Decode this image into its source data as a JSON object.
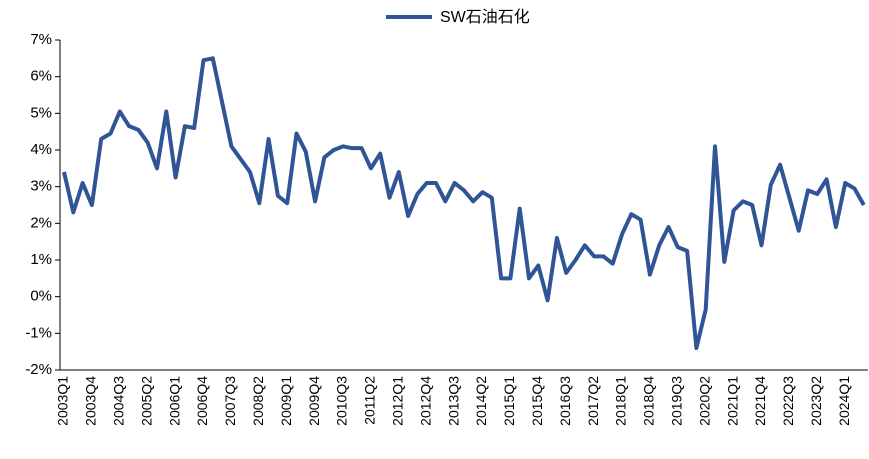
{
  "chart_data": {
    "type": "line",
    "categories": [
      "2003Q1",
      null,
      null,
      "2003Q4",
      null,
      null,
      "2004Q3",
      null,
      null,
      "2005Q2",
      null,
      null,
      "2006Q1",
      null,
      null,
      "2006Q4",
      null,
      null,
      "2007Q3",
      null,
      null,
      "2008Q2",
      null,
      null,
      "2009Q1",
      null,
      null,
      "2009Q4",
      null,
      null,
      "2010Q3",
      null,
      null,
      "2011Q2",
      null,
      null,
      "2012Q1",
      null,
      null,
      "2012Q4",
      null,
      null,
      "2013Q3",
      null,
      null,
      "2014Q2",
      null,
      null,
      "2015Q1",
      null,
      null,
      "2015Q4",
      null,
      null,
      "2016Q3",
      null,
      null,
      "2017Q2",
      null,
      null,
      "2018Q1",
      null,
      null,
      "2018Q4",
      null,
      null,
      "2019Q3",
      null,
      null,
      "2020Q2",
      null,
      null,
      "2021Q1",
      null,
      null,
      "2021Q4",
      null,
      null,
      "2022Q3",
      null,
      null,
      "2023Q2",
      null,
      null,
      "2024Q1",
      null,
      null
    ],
    "series": [
      {
        "name": "SW石油石化",
        "color": "#2f5597",
        "values": [
          3.4,
          2.3,
          3.1,
          2.5,
          4.3,
          4.45,
          5.05,
          4.65,
          4.55,
          4.2,
          3.5,
          5.05,
          3.25,
          4.65,
          4.6,
          6.45,
          6.5,
          5.3,
          4.1,
          3.75,
          3.4,
          2.55,
          4.3,
          2.75,
          2.55,
          4.45,
          3.95,
          2.6,
          3.8,
          4.0,
          4.1,
          4.05,
          4.05,
          3.5,
          3.9,
          2.7,
          3.4,
          2.2,
          2.8,
          3.1,
          3.1,
          2.6,
          3.1,
          2.9,
          2.6,
          2.85,
          2.7,
          0.5,
          0.5,
          2.4,
          0.5,
          0.85,
          -0.1,
          1.6,
          0.65,
          1.0,
          1.4,
          1.1,
          1.1,
          0.9,
          1.7,
          2.25,
          2.1,
          0.6,
          1.4,
          1.9,
          1.35,
          1.25,
          -1.4,
          -0.35,
          4.1,
          0.95,
          2.35,
          2.6,
          2.5,
          1.4,
          3.05,
          3.6,
          2.7,
          1.8,
          2.9,
          2.8,
          3.2,
          1.9,
          3.1,
          2.95,
          2.5
        ]
      }
    ],
    "ylim": [
      -2,
      7
    ],
    "yticks": [
      {
        "value": -2,
        "label": "-2%"
      },
      {
        "value": -1,
        "label": "-1%"
      },
      {
        "value": 0,
        "label": "0%"
      },
      {
        "value": 1,
        "label": "1%"
      },
      {
        "value": 2,
        "label": "2%"
      },
      {
        "value": 3,
        "label": "3%"
      },
      {
        "value": 4,
        "label": "4%"
      },
      {
        "value": 5,
        "label": "5%"
      },
      {
        "value": 6,
        "label": "6%"
      },
      {
        "value": 7,
        "label": "7%"
      }
    ],
    "grid": false,
    "legend": "top"
  }
}
